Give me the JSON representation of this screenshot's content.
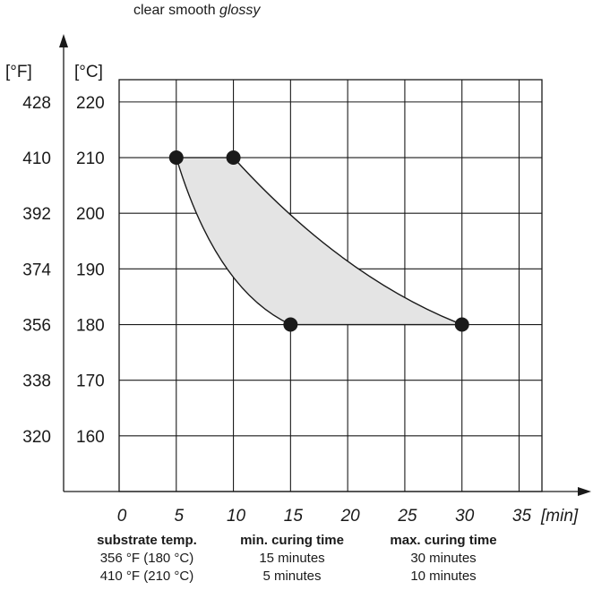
{
  "subtitle": {
    "plain": "clear smooth",
    "emphasis": "glossy"
  },
  "chart_data": {
    "type": "area",
    "y_units": [
      "[°F]",
      "[°C]"
    ],
    "x_unit": "[min]",
    "x_ticks": [
      0,
      5,
      10,
      15,
      20,
      25,
      30,
      35
    ],
    "y_ticks_c": [
      160,
      170,
      180,
      190,
      200,
      210,
      220
    ],
    "y_ticks_f": [
      320,
      338,
      356,
      374,
      392,
      410,
      428
    ],
    "xlim": [
      0,
      37
    ],
    "ylim": [
      150,
      224
    ],
    "grid": true,
    "region_color": "#e4e4e4",
    "min_curve": [
      [
        5,
        210
      ],
      [
        15,
        180
      ]
    ],
    "max_curve": [
      [
        10,
        210
      ],
      [
        30,
        180
      ]
    ],
    "points": [
      {
        "x": 5,
        "y": 210
      },
      {
        "x": 10,
        "y": 210
      },
      {
        "x": 15,
        "y": 180
      },
      {
        "x": 30,
        "y": 180
      }
    ]
  },
  "table": {
    "columns": [
      {
        "header": "substrate temp.",
        "rows": [
          "356 °F (180 °C)",
          "410 °F (210 °C)"
        ]
      },
      {
        "header": "min. curing time",
        "rows": [
          "15 minutes",
          "5 minutes"
        ]
      },
      {
        "header": "max. curing time",
        "rows": [
          "30 minutes",
          "10 minutes"
        ]
      }
    ]
  }
}
